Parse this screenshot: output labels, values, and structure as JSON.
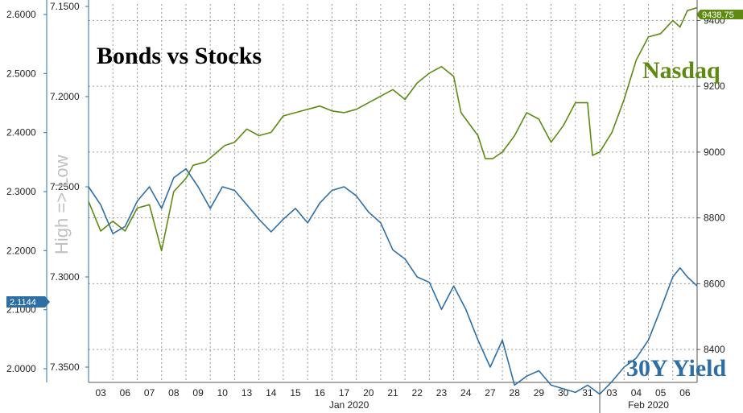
{
  "chart_data": {
    "type": "line",
    "title": "Bonds vs Stocks",
    "left_caption": "High => Low",
    "x_tick_labels": [
      "03",
      "06",
      "07",
      "08",
      "09",
      "10",
      "13",
      "14",
      "15",
      "16",
      "17",
      "20",
      "21",
      "22",
      "23",
      "24",
      "27",
      "28",
      "29",
      "30",
      "31",
      "03",
      "04",
      "05",
      "06"
    ],
    "month_labels": [
      "Jan 2020",
      "Feb 2020"
    ],
    "axes": {
      "y_yield_outer": {
        "ticks": [
          "2.6000",
          "2.5000",
          "2.4000",
          "2.3000",
          "2.2000",
          "2.1000",
          "2.0000"
        ],
        "range": [
          2.6,
          2.0
        ]
      },
      "y_price_inner": {
        "ticks": [
          "7.1500",
          "7.2000",
          "7.2500",
          "7.3000",
          "7.3500"
        ],
        "range": [
          7.15,
          7.35
        ]
      },
      "y_nasdaq": {
        "ticks": [
          "9400",
          "9200",
          "9000",
          "8800",
          "8600",
          "8400"
        ],
        "range": [
          8300,
          9450
        ]
      }
    },
    "series": [
      {
        "name": "Nasdaq",
        "color": "#5e8a12",
        "axis": "y_nasdaq",
        "last_value_badge": "9438.75",
        "points": [
          [
            0,
            8850
          ],
          [
            0.5,
            8760
          ],
          [
            1,
            8790
          ],
          [
            1.5,
            8760
          ],
          [
            2,
            8830
          ],
          [
            2.5,
            8840
          ],
          [
            3,
            8700
          ],
          [
            3.5,
            8880
          ],
          [
            4,
            8920
          ],
          [
            4.3,
            8960
          ],
          [
            4.8,
            8970
          ],
          [
            5.2,
            8995
          ],
          [
            5.6,
            9020
          ],
          [
            6,
            9030
          ],
          [
            6.5,
            9070
          ],
          [
            7,
            9050
          ],
          [
            7.5,
            9060
          ],
          [
            8,
            9110
          ],
          [
            8.5,
            9120
          ],
          [
            9,
            9130
          ],
          [
            9.5,
            9140
          ],
          [
            10,
            9125
          ],
          [
            10.5,
            9120
          ],
          [
            11,
            9130
          ],
          [
            11.5,
            9150
          ],
          [
            12,
            9170
          ],
          [
            12.5,
            9190
          ],
          [
            13,
            9160
          ],
          [
            13.5,
            9210
          ],
          [
            14,
            9240
          ],
          [
            14.5,
            9260
          ],
          [
            15,
            9230
          ],
          [
            15.3,
            9120
          ],
          [
            15.6,
            9090
          ],
          [
            16,
            9050
          ],
          [
            16.3,
            8980
          ],
          [
            16.6,
            8980
          ],
          [
            17,
            9000
          ],
          [
            17.5,
            9050
          ],
          [
            18,
            9120
          ],
          [
            18.5,
            9100
          ],
          [
            19,
            9030
          ],
          [
            19.5,
            9080
          ],
          [
            20,
            9150
          ],
          [
            20.5,
            9150
          ],
          [
            20.7,
            8990
          ],
          [
            21,
            9000
          ],
          [
            21.5,
            9060
          ],
          [
            22,
            9160
          ],
          [
            22.5,
            9280
          ],
          [
            23,
            9350
          ],
          [
            23.5,
            9360
          ],
          [
            24,
            9400
          ],
          [
            24.3,
            9380
          ],
          [
            24.6,
            9430
          ],
          [
            25,
            9439
          ]
        ]
      },
      {
        "name": "30Y Yield",
        "color": "#2d6fa5",
        "axis": "y_price_inner",
        "last_value_badge": "2.1144",
        "points": [
          [
            0,
            7.25
          ],
          [
            0.5,
            7.26
          ],
          [
            1,
            7.276
          ],
          [
            1.5,
            7.272
          ],
          [
            2,
            7.258
          ],
          [
            2.5,
            7.25
          ],
          [
            3,
            7.262
          ],
          [
            3.5,
            7.245
          ],
          [
            4,
            7.24
          ],
          [
            4.5,
            7.25
          ],
          [
            5,
            7.262
          ],
          [
            5.5,
            7.25
          ],
          [
            6,
            7.252
          ],
          [
            6.5,
            7.26
          ],
          [
            7,
            7.268
          ],
          [
            7.5,
            7.275
          ],
          [
            8,
            7.268
          ],
          [
            8.5,
            7.262
          ],
          [
            9,
            7.27
          ],
          [
            9.5,
            7.259
          ],
          [
            10,
            7.252
          ],
          [
            10.5,
            7.25
          ],
          [
            11,
            7.255
          ],
          [
            11.5,
            7.264
          ],
          [
            12,
            7.27
          ],
          [
            12.5,
            7.285
          ],
          [
            13,
            7.29
          ],
          [
            13.5,
            7.3
          ],
          [
            14,
            7.303
          ],
          [
            14.5,
            7.318
          ],
          [
            15,
            7.305
          ],
          [
            15.5,
            7.318
          ],
          [
            16,
            7.335
          ],
          [
            16.5,
            7.35
          ],
          [
            17,
            7.335
          ],
          [
            17.5,
            7.36
          ],
          [
            18,
            7.355
          ],
          [
            18.5,
            7.352
          ],
          [
            19,
            7.36
          ],
          [
            19.5,
            7.362
          ],
          [
            20,
            7.364
          ],
          [
            20.5,
            7.36
          ],
          [
            21,
            7.365
          ],
          [
            21.5,
            7.358
          ],
          [
            22,
            7.35
          ],
          [
            22.5,
            7.345
          ],
          [
            23,
            7.335
          ],
          [
            23.5,
            7.318
          ],
          [
            24,
            7.3
          ],
          [
            24.3,
            7.295
          ],
          [
            24.6,
            7.3
          ],
          [
            25,
            7.305
          ]
        ]
      }
    ],
    "grid": true,
    "legend": "none"
  }
}
